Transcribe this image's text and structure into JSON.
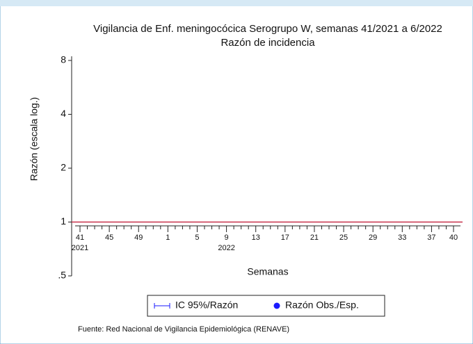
{
  "chart_data": {
    "type": "line",
    "title": "Vigilancia de Enf. meningocócica Serogrupo W, semanas 41/2021 a 6/2022",
    "subtitle": "Razón de incidencia",
    "y_label": "Razón (escala log.)",
    "x_label": "Semanas",
    "source": "Fuente: Red Nacional de Vigilancia Epidemiológica (RENAVE)",
    "log_scale": true,
    "ylim": [
      0.5,
      8
    ],
    "yticks": [
      {
        "value": 0.5,
        "label": ".5"
      },
      1,
      2,
      4,
      8
    ],
    "reference_line": {
      "value": 1,
      "color": "#c8304a"
    },
    "categories": [
      41,
      null,
      null,
      null,
      45,
      null,
      null,
      null,
      49,
      null,
      null,
      null,
      1,
      null,
      null,
      null,
      5,
      null,
      null,
      null,
      9,
      null,
      null,
      null,
      13,
      null,
      null,
      null,
      17,
      null,
      null,
      null,
      21,
      null,
      null,
      null,
      25,
      null,
      null,
      null,
      29,
      null,
      null,
      null,
      33,
      null,
      null,
      null,
      37,
      null,
      null,
      40
    ],
    "category_years": [
      "2021",
      null,
      null,
      null,
      null,
      null,
      null,
      null,
      null,
      null,
      null,
      null,
      null,
      null,
      null,
      null,
      null,
      null,
      null,
      null,
      "2022",
      null,
      null,
      null,
      null,
      null,
      null,
      null,
      null,
      null,
      null,
      null,
      null,
      null,
      null,
      null,
      null,
      null,
      null,
      null,
      null,
      null,
      null,
      null,
      null,
      null,
      null,
      null,
      null,
      null,
      null,
      null
    ],
    "series": [
      {
        "name": "IC 95%/Razón",
        "color": "#1a1aff",
        "values": [
          null,
          null,
          null,
          null,
          null,
          null,
          null,
          null,
          null,
          null,
          null,
          null,
          null,
          null,
          null,
          null,
          null,
          null,
          null,
          null,
          null,
          null,
          null,
          null,
          null,
          null,
          null,
          null,
          null,
          null,
          null,
          null,
          null,
          null,
          null,
          null,
          null,
          null,
          null,
          null,
          null,
          null,
          null,
          null,
          null,
          null,
          null,
          null,
          null,
          null,
          null,
          null
        ]
      },
      {
        "name": "Razón Obs./Esp.",
        "color": "#1a1aff",
        "values": [
          null,
          null,
          null,
          null,
          null,
          null,
          null,
          null,
          null,
          null,
          null,
          null,
          null,
          null,
          null,
          null,
          null,
          null,
          null,
          null,
          null,
          null,
          null,
          null,
          null,
          null,
          null,
          null,
          null,
          null,
          null,
          null,
          null,
          null,
          null,
          null,
          null,
          null,
          null,
          null,
          null,
          null,
          null,
          null,
          null,
          null,
          null,
          null,
          null,
          null,
          null,
          null
        ]
      }
    ]
  }
}
